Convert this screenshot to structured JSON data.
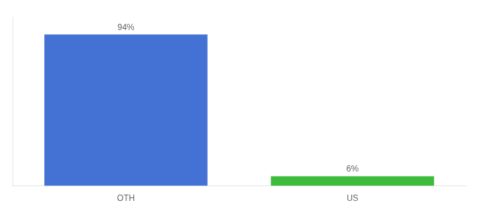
{
  "chart_data": {
    "type": "bar",
    "categories": [
      "OTH",
      "US"
    ],
    "values": [
      94,
      6
    ],
    "value_labels": [
      "94%",
      "6%"
    ],
    "colors": [
      "#4472d4",
      "#3dbb3d"
    ],
    "ylim": [
      0,
      105
    ],
    "grid": false,
    "data_labels": true,
    "tick_labels": "x"
  }
}
